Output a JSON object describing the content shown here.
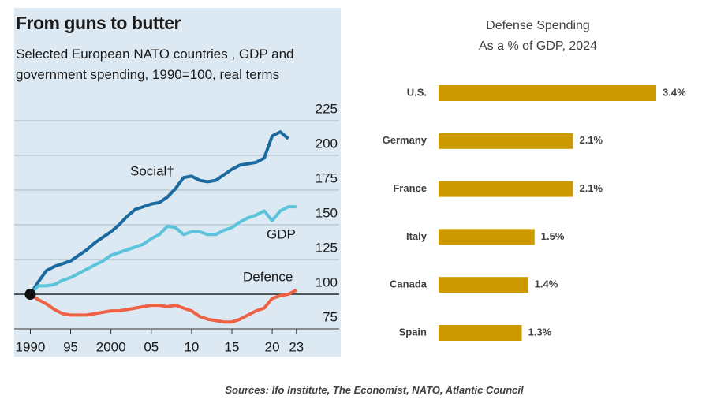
{
  "chart_data": [
    {
      "type": "line",
      "title": "From guns to butter",
      "subtitle": "Selected European NATO countries   , GDP and government spending, 1990=100, real terms",
      "x": [
        1990,
        1991,
        1992,
        1993,
        1994,
        1995,
        1996,
        1997,
        1998,
        1999,
        2000,
        2001,
        2002,
        2003,
        2004,
        2005,
        2006,
        2007,
        2008,
        2009,
        2010,
        2011,
        2012,
        2013,
        2014,
        2015,
        2016,
        2017,
        2018,
        2019,
        2020,
        2021,
        2022,
        2023
      ],
      "series": [
        {
          "name": "Social†",
          "color": "#1a6aa0",
          "values": [
            100,
            109,
            117,
            120,
            122,
            124,
            128,
            132,
            137,
            141,
            145,
            150,
            156,
            161,
            163,
            165,
            166,
            170,
            176,
            184,
            185,
            182,
            181,
            182,
            186,
            190,
            193,
            194,
            195,
            198,
            214,
            217,
            212,
            null
          ]
        },
        {
          "name": "GDP",
          "color": "#5bc3dc",
          "values": [
            100,
            106,
            106,
            107,
            110,
            112,
            115,
            118,
            121,
            124,
            128,
            130,
            132,
            134,
            136,
            140,
            143,
            149,
            148,
            143,
            145,
            145,
            143,
            143,
            146,
            148,
            152,
            155,
            157,
            160,
            153,
            160,
            163,
            163
          ]
        },
        {
          "name": "Defence",
          "color": "#ef6145",
          "values": [
            100,
            96,
            93,
            89,
            86,
            85,
            85,
            85,
            86,
            87,
            88,
            88,
            89,
            90,
            91,
            92,
            92,
            91,
            92,
            90,
            88,
            84,
            82,
            81,
            80,
            80,
            82,
            85,
            88,
            90,
            97,
            99,
            100,
            103
          ]
        }
      ],
      "xlim": [
        1988,
        2028.5
      ],
      "xticks": [
        1990,
        {
          "value": 1995,
          "label": "95"
        },
        2000,
        {
          "value": 2005,
          "label": "05"
        },
        {
          "value": 2010,
          "label": "10"
        },
        {
          "value": 2015,
          "label": "15"
        },
        {
          "value": 2020,
          "label": "20"
        },
        {
          "value": 2023,
          "label": "23"
        }
      ],
      "ylim": [
        75,
        235
      ],
      "yticks": [
        75,
        100,
        125,
        150,
        175,
        200,
        225
      ],
      "grid": true
    },
    {
      "type": "hbar",
      "title": "Defense Spending",
      "subtitle": "As a % of GDP, 2024",
      "categories": [
        "U.S.",
        "Germany",
        "France",
        "Italy",
        "Canada",
        "Spain"
      ],
      "values": [
        3.4,
        2.1,
        2.1,
        1.5,
        1.4,
        1.3
      ],
      "value_labels": [
        "3.4%",
        "2.1%",
        "2.1%",
        "1.5%",
        "1.4%",
        "1.3%"
      ],
      "color": "#cc9a00"
    }
  ],
  "source": "Sources: Ifo Institute, The Economist, NATO, Atlantic Council"
}
